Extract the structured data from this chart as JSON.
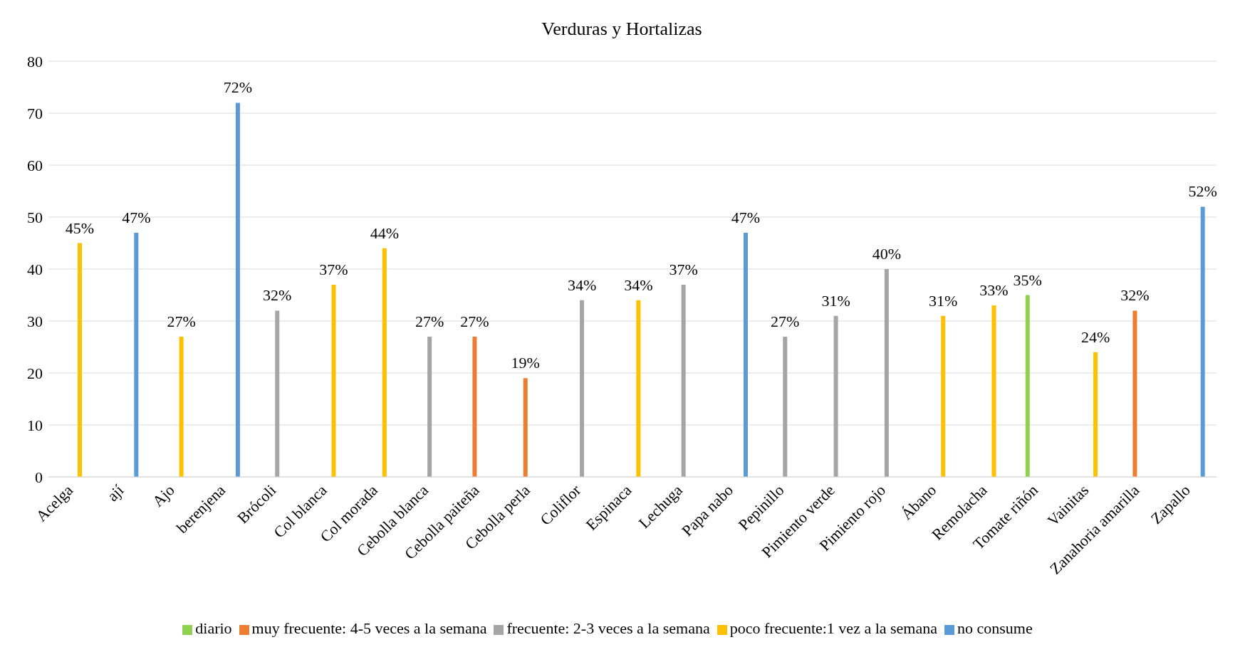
{
  "chart_data": {
    "type": "bar",
    "title": "Verduras y Hortalizas",
    "categories": [
      "Acelga",
      "ají",
      "Ajo",
      "berenjena",
      "Brócoli",
      "Col blanca",
      "Col morada",
      "Cebolla blanca",
      "Cebolla paiteña",
      "Cebolla perla",
      "Coliflor",
      "Espinaca",
      "Lechuga",
      "Papa nabo",
      "Pepinillo",
      "Pimiento verde",
      "Pimiento rojo",
      "Ábano",
      "Remolacha",
      "Tomate riñón",
      "Vainitas",
      "Zanahoria amarilla",
      "Zapallo"
    ],
    "series": [
      {
        "name": "diario",
        "color": "#92d050",
        "values": [
          null,
          null,
          null,
          null,
          null,
          null,
          null,
          null,
          null,
          null,
          null,
          null,
          null,
          null,
          null,
          null,
          null,
          null,
          null,
          35,
          null,
          null,
          null
        ],
        "value_labels": [
          null,
          null,
          null,
          null,
          null,
          null,
          null,
          null,
          null,
          null,
          null,
          null,
          null,
          null,
          null,
          null,
          null,
          null,
          null,
          "35%",
          null,
          null,
          null
        ]
      },
      {
        "name": "muy frecuente: 4-5 veces a la semana",
        "color": "#ed7d31",
        "values": [
          null,
          null,
          null,
          null,
          null,
          null,
          null,
          null,
          27,
          19,
          null,
          null,
          null,
          null,
          null,
          null,
          null,
          null,
          null,
          null,
          null,
          32,
          null
        ],
        "value_labels": [
          null,
          null,
          null,
          null,
          null,
          null,
          null,
          null,
          "27%",
          "19%",
          null,
          null,
          null,
          null,
          null,
          null,
          null,
          null,
          null,
          null,
          null,
          "32%",
          null
        ]
      },
      {
        "name": "frecuente: 2-3 veces a la semana",
        "color": "#a5a5a5",
        "values": [
          null,
          null,
          null,
          null,
          32,
          null,
          null,
          27,
          null,
          null,
          34,
          null,
          37,
          null,
          27,
          31,
          40,
          null,
          null,
          null,
          null,
          null,
          null
        ],
        "value_labels": [
          null,
          null,
          null,
          null,
          "32%",
          null,
          null,
          "27%",
          null,
          null,
          "34%",
          null,
          "37%",
          null,
          "27%",
          "31%",
          "40%",
          null,
          null,
          null,
          null,
          null,
          null
        ]
      },
      {
        "name": "poco frecuente:1 vez a la semana",
        "color": "#ffc000",
        "values": [
          45,
          null,
          27,
          null,
          null,
          37,
          44,
          null,
          null,
          null,
          null,
          34,
          null,
          null,
          null,
          null,
          null,
          31,
          33,
          null,
          24,
          null,
          null
        ],
        "value_labels": [
          "45%",
          null,
          "27%",
          null,
          null,
          "37%",
          "44%",
          null,
          null,
          null,
          null,
          "34%",
          null,
          null,
          null,
          null,
          null,
          "31%",
          "33%",
          null,
          "24%",
          null,
          null
        ]
      },
      {
        "name": "no consume",
        "color": "#5b9bd5",
        "values": [
          null,
          47,
          null,
          72,
          null,
          null,
          null,
          null,
          null,
          null,
          null,
          null,
          null,
          47,
          null,
          null,
          null,
          null,
          null,
          null,
          null,
          null,
          52
        ],
        "value_labels": [
          null,
          "47%",
          null,
          "72%",
          null,
          null,
          null,
          null,
          null,
          null,
          null,
          null,
          null,
          "47%",
          null,
          null,
          null,
          null,
          null,
          null,
          null,
          null,
          "52%"
        ]
      }
    ],
    "ylim": [
      0,
      80
    ],
    "yticks": [
      0,
      10,
      20,
      30,
      40,
      50,
      60,
      70,
      80
    ],
    "grid": "y",
    "legend": "bottom"
  }
}
